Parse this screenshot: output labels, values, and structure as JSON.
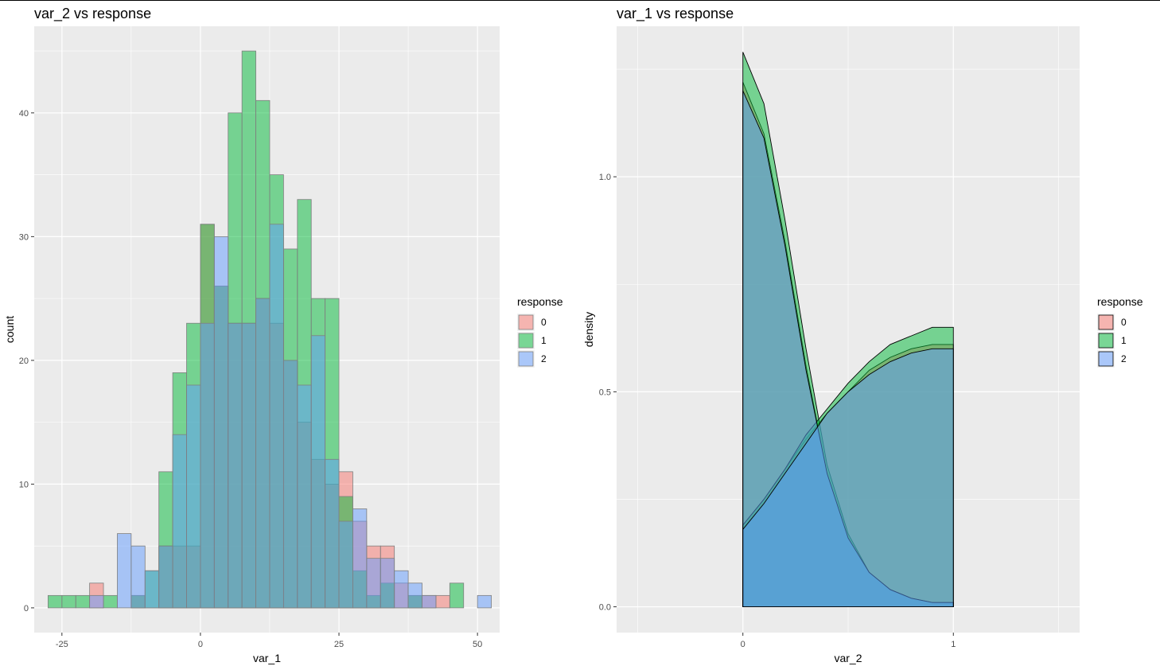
{
  "chart_data": [
    {
      "type": "histogram",
      "title": "var_2 vs response",
      "xlabel": "var_1",
      "ylabel": "count",
      "xlim": [
        -30,
        54
      ],
      "ylim": [
        -2,
        47
      ],
      "xticks": [
        -25,
        0,
        25,
        50
      ],
      "yticks": [
        0,
        10,
        20,
        30,
        40
      ],
      "bin_start": -27.5,
      "bin_width": 2.5,
      "grid": true,
      "legend": {
        "title": "response",
        "position": "right",
        "entries": [
          "0",
          "1",
          "2"
        ]
      },
      "series": [
        {
          "name": "0",
          "color": "#F8766D",
          "counts": [
            0,
            0,
            0,
            2,
            0,
            0,
            1,
            0,
            5,
            5,
            5,
            31,
            26,
            23,
            23,
            25,
            23,
            20,
            15,
            12,
            10,
            11,
            7,
            5,
            5,
            2,
            1,
            1,
            1,
            0,
            0,
            0,
            0
          ]
        },
        {
          "name": "1",
          "color": "#00BA38",
          "counts": [
            1,
            1,
            1,
            0,
            1,
            0,
            1,
            3,
            11,
            19,
            23,
            31,
            26,
            40,
            45,
            41,
            35,
            29,
            33,
            25,
            25,
            9,
            3,
            1,
            2,
            0,
            1,
            0,
            0,
            2,
            0,
            0,
            0
          ]
        },
        {
          "name": "2",
          "color": "#619CFF",
          "counts": [
            0,
            0,
            0,
            1,
            0,
            6,
            5,
            3,
            5,
            14,
            18,
            23,
            30,
            23,
            23,
            25,
            31,
            20,
            18,
            22,
            12,
            7,
            8,
            4,
            4,
            3,
            2,
            1,
            0,
            0,
            0,
            1,
            0
          ]
        }
      ]
    },
    {
      "type": "area",
      "title": "var_1 vs response",
      "xlabel": "var_2",
      "ylabel": "density",
      "xlim": [
        -0.6,
        1.6
      ],
      "ylim": [
        -0.06,
        1.35
      ],
      "xticks": [
        0,
        1
      ],
      "yticks": [
        0.0,
        0.5,
        1.0
      ],
      "grid": true,
      "legend": {
        "title": "response",
        "position": "right",
        "entries": [
          "0",
          "1",
          "2"
        ]
      },
      "series": [
        {
          "name": "0",
          "color": "#F8766D",
          "x": [
            0,
            0.1,
            0.2,
            0.3,
            0.4,
            0.5,
            0.6,
            0.7,
            0.8,
            0.9,
            1.0
          ],
          "density": [
            1.22,
            1.1,
            0.85,
            0.56,
            0.31,
            0.16,
            0.08,
            0.04,
            0.02,
            0.01,
            0.01
          ],
          "density_b": [
            0.19,
            0.25,
            0.32,
            0.39,
            0.45,
            0.5,
            0.55,
            0.58,
            0.6,
            0.61,
            0.61
          ]
        },
        {
          "name": "1",
          "color": "#00BA38",
          "x": [
            0,
            0.1,
            0.2,
            0.3,
            0.4,
            0.5,
            0.6,
            0.7,
            0.8,
            0.9,
            1.0
          ],
          "density": [
            1.29,
            1.17,
            0.9,
            0.6,
            0.33,
            0.17,
            0.08,
            0.04,
            0.02,
            0.01,
            0.01
          ],
          "density_b": [
            0.19,
            0.25,
            0.32,
            0.4,
            0.46,
            0.52,
            0.57,
            0.61,
            0.63,
            0.65,
            0.65
          ]
        },
        {
          "name": "2",
          "color": "#619CFF",
          "x": [
            0,
            0.1,
            0.2,
            0.3,
            0.4,
            0.5,
            0.6,
            0.7,
            0.8,
            0.9,
            1.0
          ],
          "density": [
            1.2,
            1.09,
            0.84,
            0.55,
            0.31,
            0.16,
            0.08,
            0.04,
            0.02,
            0.01,
            0.01
          ],
          "density_b": [
            0.18,
            0.24,
            0.31,
            0.38,
            0.45,
            0.5,
            0.54,
            0.57,
            0.59,
            0.6,
            0.6
          ]
        }
      ]
    }
  ]
}
